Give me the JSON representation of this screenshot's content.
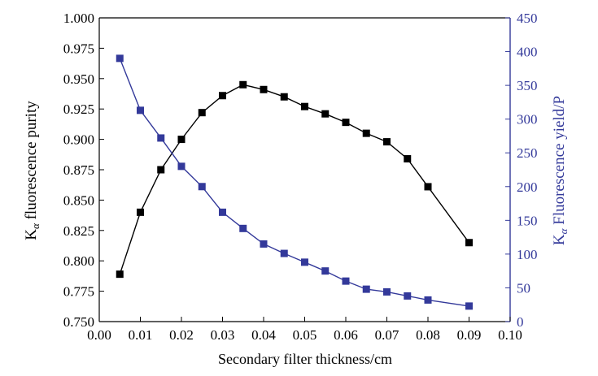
{
  "chart_data": {
    "type": "line",
    "xlabel": "Secondary  filter  thickness/cm",
    "xlim": [
      0.0,
      0.1
    ],
    "xticks": [
      "0.00",
      "0.01",
      "0.02",
      "0.03",
      "0.04",
      "0.05",
      "0.06",
      "0.07",
      "0.08",
      "0.09",
      "0.10"
    ],
    "x": [
      0.005,
      0.01,
      0.015,
      0.02,
      0.025,
      0.03,
      0.035,
      0.04,
      0.045,
      0.05,
      0.055,
      0.06,
      0.065,
      0.07,
      0.075,
      0.08,
      0.09
    ],
    "left_axis": {
      "label_main": "K",
      "label_sub": "α",
      "label_rest": " fluorescence  purity",
      "ylim": [
        0.75,
        1.0
      ],
      "ticks": [
        "0.750",
        "0.775",
        "0.800",
        "0.825",
        "0.850",
        "0.875",
        "0.900",
        "0.925",
        "0.950",
        "0.975",
        "1.000"
      ]
    },
    "right_axis": {
      "label_main": "K",
      "label_sub": "α",
      "label_rest": " Fluorescence  yield/P",
      "ylim": [
        0,
        450
      ],
      "ticks": [
        "0",
        "50",
        "100",
        "150",
        "200",
        "250",
        "300",
        "350",
        "400",
        "450"
      ]
    },
    "series": [
      {
        "axis": "left",
        "color": "#000000",
        "marker": "square",
        "values": [
          0.789,
          0.84,
          0.875,
          0.9,
          0.922,
          0.936,
          0.945,
          0.941,
          0.935,
          0.927,
          0.921,
          0.914,
          0.905,
          0.898,
          0.884,
          0.861,
          0.815
        ]
      },
      {
        "axis": "right",
        "color": "#33399a",
        "marker": "square",
        "values": [
          390,
          313,
          272,
          230,
          200,
          162,
          138,
          115,
          101,
          88,
          75,
          60,
          48,
          44,
          38,
          32,
          23
        ]
      }
    ],
    "colors": {
      "left_axis": "#000000",
      "right_axis": "#33399a"
    }
  }
}
